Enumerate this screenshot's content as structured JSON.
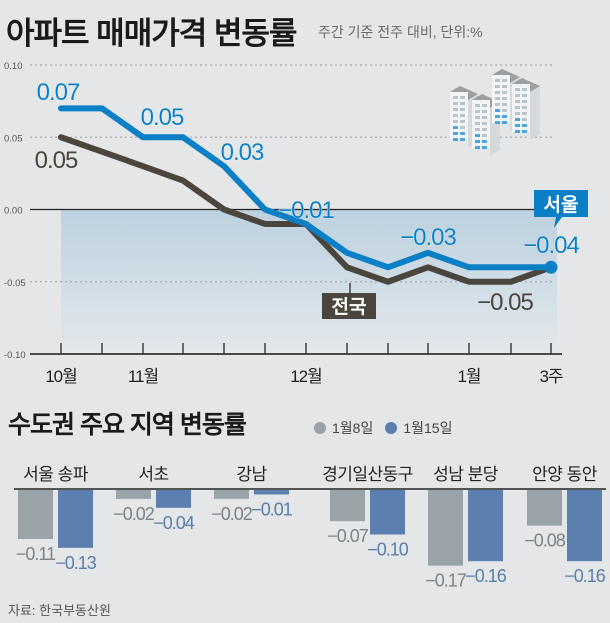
{
  "header": {
    "title": "아파트 매매가격 변동률",
    "subtitle": "주간 기준 전주 대비, 단위:%"
  },
  "section2": {
    "title": "수도권 주요 지역 변동률",
    "legend": [
      {
        "label": "1월8일",
        "color": "#9aa3a8"
      },
      {
        "label": "1월15일",
        "color": "#5b7fae"
      }
    ]
  },
  "source": "자료: 한국부동산원",
  "chart_data": [
    {
      "type": "line",
      "title": "아파트 매매가격 변동률",
      "subtitle": "주간 기준 전주 대비, 단위:%",
      "x_ticks": [
        "",
        "",
        "",
        "",
        "",
        "",
        "",
        "",
        "",
        "",
        "",
        "",
        ""
      ],
      "x_tick_labels": [
        {
          "index": 0,
          "label": "10월"
        },
        {
          "index": 2,
          "label": "11월"
        },
        {
          "index": 6,
          "label": "12월"
        },
        {
          "index": 10,
          "label": "1월"
        },
        {
          "index": 12,
          "label": "3주"
        }
      ],
      "y_ticks": [
        "0.10",
        "0.05",
        "0.00",
        "-0.05",
        "-0.10"
      ],
      "ylim": [
        -0.1,
        0.1
      ],
      "grid": "dotted horizontal",
      "series": [
        {
          "name": "서울",
          "color": "#0b7fc6",
          "values": [
            0.07,
            0.07,
            0.05,
            0.05,
            0.03,
            0.0,
            -0.01,
            -0.03,
            -0.04,
            -0.03,
            -0.04,
            -0.04,
            -0.04
          ],
          "labels": [
            {
              "index": 0,
              "text": "0.07"
            },
            {
              "index": 2,
              "text": "0.05"
            },
            {
              "index": 4,
              "text": "0.03"
            },
            {
              "index": 6,
              "text": "−0.01"
            },
            {
              "index": 9,
              "text": "−0.03"
            },
            {
              "index": 12,
              "text": "−0.04"
            }
          ]
        },
        {
          "name": "전국",
          "color": "#4a463d",
          "values": [
            0.05,
            0.04,
            0.03,
            0.02,
            0.0,
            -0.01,
            -0.01,
            -0.04,
            -0.05,
            -0.04,
            -0.05,
            -0.05,
            -0.04
          ],
          "labels": [
            {
              "index": 0,
              "text": "0.05"
            },
            {
              "index": 11,
              "text": "−0.05"
            }
          ]
        }
      ]
    },
    {
      "type": "bar",
      "title": "수도권 주요 지역 변동률",
      "categories": [
        "서울 송파",
        "서초",
        "강남",
        "경기일산동구",
        "성남 분당",
        "안양 동안"
      ],
      "series": [
        {
          "name": "1월8일",
          "color": "#9aa3a8",
          "values": [
            -0.11,
            -0.02,
            -0.02,
            -0.07,
            -0.17,
            -0.08
          ]
        },
        {
          "name": "1월15일",
          "color": "#5b7fae",
          "values": [
            -0.13,
            -0.04,
            -0.01,
            -0.1,
            -0.16,
            -0.16
          ]
        }
      ],
      "value_labels": [
        [
          "−0.11",
          "−0.02",
          "−0.02",
          "−0.07",
          "−0.17",
          "−0.08"
        ],
        [
          "−0.13",
          "−0.04",
          "−0.01",
          "−0.10",
          "−0.16",
          "−0.16"
        ]
      ]
    }
  ]
}
